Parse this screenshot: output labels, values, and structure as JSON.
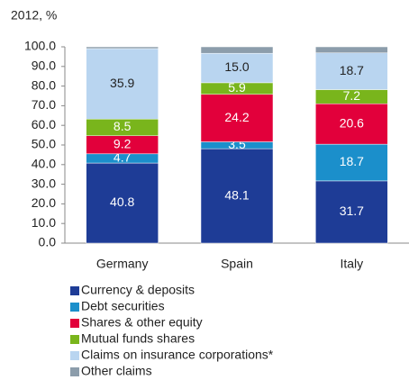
{
  "chart_data": {
    "type": "stacked_bar",
    "subtitle": "2012, %",
    "categories": [
      "Germany",
      "Spain",
      "Italy"
    ],
    "ylim": [
      0,
      100
    ],
    "yticks": [
      {
        "value": 0,
        "label": "0.0"
      },
      {
        "value": 10,
        "label": "10.0"
      },
      {
        "value": 20,
        "label": "20.0"
      },
      {
        "value": 30,
        "label": "30.0"
      },
      {
        "value": 40,
        "label": "40.0"
      },
      {
        "value": 50,
        "label": "50.0"
      },
      {
        "value": 60,
        "label": "60.0"
      },
      {
        "value": 70,
        "label": "70.0"
      },
      {
        "value": 80,
        "label": "80.0"
      },
      {
        "value": 90,
        "label": "90.0"
      },
      {
        "value": 100,
        "label": "100.0"
      }
    ],
    "series": [
      {
        "name": "Currency & deposits",
        "color": "#1e3c96",
        "values": [
          40.8,
          48.1,
          31.7
        ],
        "value_labels": [
          "40.8",
          "48.1",
          "31.7"
        ]
      },
      {
        "name": "Debt securities",
        "color": "#1b8fcb",
        "values": [
          4.7,
          3.5,
          18.7
        ],
        "value_labels": [
          "4.7",
          "3.5",
          "18.7"
        ]
      },
      {
        "name": "Shares & other equity",
        "color": "#e2003b",
        "values": [
          9.2,
          24.2,
          20.6
        ],
        "value_labels": [
          "9.2",
          "24.2",
          "20.6"
        ]
      },
      {
        "name": "Mutual funds shares",
        "color": "#79b51c",
        "values": [
          8.5,
          5.9,
          7.2
        ],
        "value_labels": [
          "8.5",
          "5.9",
          "7.2"
        ]
      },
      {
        "name": "Claims on insurance corporations*",
        "color": "#b9d5f0",
        "values": [
          35.9,
          15.0,
          18.7
        ],
        "value_labels": [
          "35.9",
          "15.0",
          "18.7"
        ]
      },
      {
        "name": "Other claims",
        "color": "#8c9dab",
        "values": [
          0.9,
          3.3,
          3.1
        ]
      }
    ]
  }
}
